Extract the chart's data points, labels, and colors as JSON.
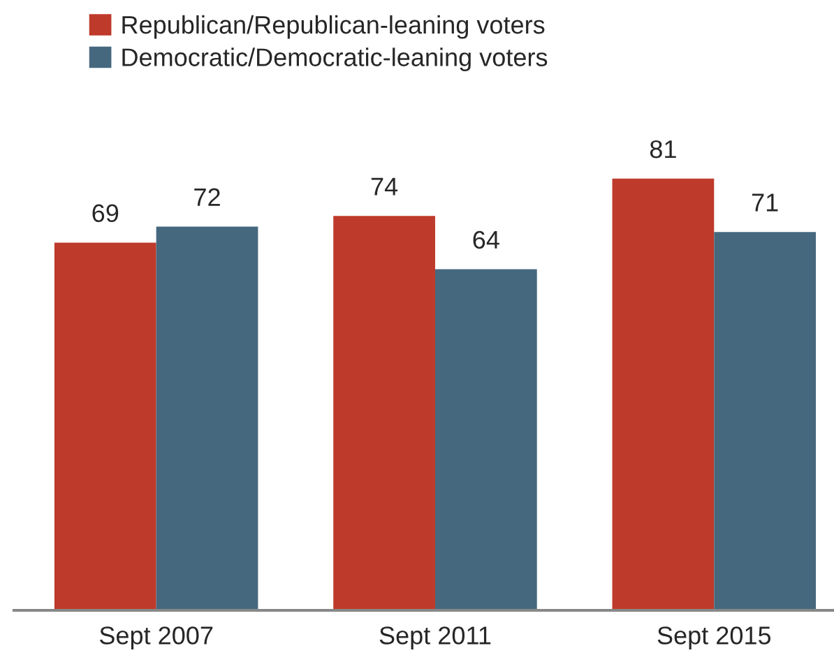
{
  "chart_data": {
    "type": "bar",
    "categories": [
      "Sept 2007",
      "Sept 2011",
      "Sept 2015"
    ],
    "series": [
      {
        "name": "Republican/Republican-leaning voters",
        "color": "#be3a2a",
        "values": [
          69,
          74,
          81
        ]
      },
      {
        "name": "Democratic/Democratic-leaning voters",
        "color": "#46687f",
        "values": [
          72,
          64,
          71
        ]
      }
    ],
    "data_labels": true,
    "legend": "top",
    "grid": false
  }
}
